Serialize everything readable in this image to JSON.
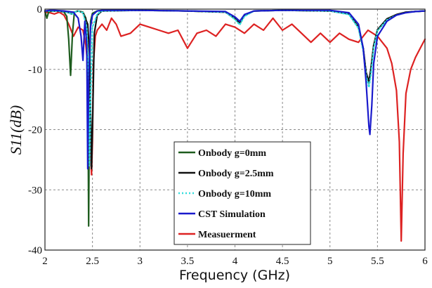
{
  "chart_data": {
    "type": "line",
    "xlabel": "Frequency (GHz)",
    "ylabel": "S11(dB)",
    "xlim": [
      2,
      6
    ],
    "ylim": [
      -40,
      0
    ],
    "x_ticks": [
      "2",
      "2.5",
      "3",
      "3.5",
      "4",
      "4.5",
      "5",
      "5.5",
      "6"
    ],
    "y_ticks": [
      "0",
      "-10",
      "-20",
      "-30",
      "-40"
    ],
    "grid": true,
    "legend_position": "bottom-center",
    "series": [
      {
        "name": "Onbody g=0mm",
        "color": "#1e5c1e",
        "dash": "solid",
        "x": [
          2.0,
          2.02,
          2.04,
          2.1,
          2.15,
          2.2,
          2.23,
          2.25,
          2.27,
          2.29,
          2.31,
          2.35,
          2.4,
          2.43,
          2.45,
          2.46,
          2.47,
          2.48,
          2.5,
          2.55,
          2.6,
          3.0,
          3.5,
          3.9,
          4.0,
          4.05,
          4.1,
          4.2,
          4.5,
          5.0,
          5.2,
          5.3,
          5.35,
          5.38,
          5.41,
          5.43,
          5.46,
          5.5,
          5.6,
          5.7,
          5.8,
          5.9,
          6.0
        ],
        "y": [
          -0.3,
          -1.5,
          -0.4,
          -0.3,
          -0.3,
          -0.5,
          -1.2,
          -5.0,
          -11.0,
          -4.0,
          -0.5,
          -0.3,
          -0.5,
          -1.5,
          -9.0,
          -36.0,
          -10.0,
          -2.0,
          -0.7,
          -0.3,
          -0.2,
          -0.2,
          -0.3,
          -0.5,
          -1.6,
          -2.4,
          -1.0,
          -0.3,
          -0.2,
          -0.3,
          -0.8,
          -3.0,
          -6.5,
          -10.5,
          -12.3,
          -10.0,
          -6.0,
          -3.5,
          -1.7,
          -0.9,
          -0.5,
          -0.4,
          -0.3
        ]
      },
      {
        "name": "Onbody g=2.5mm",
        "color": "#111111",
        "dash": "solid",
        "x": [
          2.0,
          2.1,
          2.2,
          2.25,
          2.28,
          2.31,
          2.35,
          2.4,
          2.45,
          2.47,
          2.49,
          2.5,
          2.52,
          2.55,
          2.6,
          3.0,
          3.5,
          3.9,
          4.0,
          4.05,
          4.1,
          4.2,
          4.5,
          5.0,
          5.2,
          5.3,
          5.35,
          5.38,
          5.41,
          5.43,
          5.46,
          5.5,
          5.6,
          5.7,
          5.8,
          5.9,
          6.0
        ],
        "y": [
          -0.3,
          -0.3,
          -0.4,
          -0.6,
          -0.8,
          -0.5,
          -0.3,
          -0.6,
          -2.5,
          -8.0,
          -26.5,
          -20.0,
          -4.0,
          -1.0,
          -0.3,
          -0.2,
          -0.3,
          -0.5,
          -1.5,
          -2.3,
          -1.0,
          -0.3,
          -0.2,
          -0.3,
          -0.8,
          -3.0,
          -6.5,
          -10.5,
          -12.0,
          -10.0,
          -6.0,
          -3.4,
          -1.6,
          -0.9,
          -0.5,
          -0.4,
          -0.3
        ]
      },
      {
        "name": "Onbody g=10mm",
        "color": "#33dddd",
        "dash": "dotted",
        "x": [
          2.0,
          2.1,
          2.2,
          2.25,
          2.28,
          2.31,
          2.35,
          2.4,
          2.44,
          2.46,
          2.47,
          2.48,
          2.5,
          2.55,
          2.6,
          3.0,
          3.5,
          3.9,
          4.0,
          4.05,
          4.1,
          4.2,
          4.5,
          5.0,
          5.2,
          5.3,
          5.35,
          5.38,
          5.41,
          5.43,
          5.46,
          5.5,
          5.6,
          5.7,
          5.8,
          5.9,
          6.0
        ],
        "y": [
          -0.3,
          -0.3,
          -0.4,
          -0.6,
          -0.9,
          -0.5,
          -0.3,
          -0.6,
          -3.0,
          -12.0,
          -26.0,
          -15.0,
          -3.0,
          -0.8,
          -0.3,
          -0.2,
          -0.3,
          -0.5,
          -1.7,
          -2.6,
          -1.2,
          -0.3,
          -0.2,
          -0.3,
          -0.9,
          -3.2,
          -7.0,
          -11.0,
          -13.0,
          -11.0,
          -6.5,
          -3.6,
          -1.8,
          -1.0,
          -0.6,
          -0.4,
          -0.3
        ]
      },
      {
        "name": "CST Simulation",
        "color": "#1a1acc",
        "dash": "solid",
        "x": [
          2.0,
          2.05,
          2.1,
          2.2,
          2.3,
          2.35,
          2.38,
          2.4,
          2.42,
          2.44,
          2.45,
          2.46,
          2.48,
          2.5,
          2.55,
          2.6,
          3.0,
          3.5,
          3.9,
          4.0,
          4.05,
          4.1,
          4.2,
          4.5,
          5.0,
          5.2,
          5.3,
          5.35,
          5.38,
          5.41,
          5.42,
          5.44,
          5.46,
          5.5,
          5.6,
          5.7,
          5.8,
          5.9,
          6.0
        ],
        "y": [
          -0.3,
          -0.2,
          -0.2,
          -0.3,
          -0.5,
          -1.5,
          -4.5,
          -8.5,
          -2.0,
          -6.0,
          -26.5,
          -12.0,
          -3.0,
          -1.0,
          -0.3,
          -0.2,
          -0.2,
          -0.3,
          -0.4,
          -1.3,
          -2.0,
          -0.9,
          -0.3,
          -0.2,
          -0.2,
          -0.6,
          -2.5,
          -6.5,
          -12.0,
          -19.5,
          -20.8,
          -16.0,
          -9.0,
          -4.5,
          -2.0,
          -1.0,
          -0.6,
          -0.4,
          -0.3
        ]
      },
      {
        "name": "Measuerment",
        "color": "#dd2222",
        "dash": "solid",
        "x": [
          2.0,
          2.05,
          2.1,
          2.15,
          2.2,
          2.25,
          2.3,
          2.35,
          2.4,
          2.43,
          2.46,
          2.48,
          2.49,
          2.5,
          2.51,
          2.53,
          2.55,
          2.6,
          2.65,
          2.7,
          2.75,
          2.8,
          2.9,
          3.0,
          3.1,
          3.2,
          3.3,
          3.4,
          3.5,
          3.6,
          3.7,
          3.8,
          3.9,
          4.0,
          4.1,
          4.2,
          4.3,
          4.4,
          4.5,
          4.6,
          4.7,
          4.8,
          4.9,
          5.0,
          5.1,
          5.2,
          5.3,
          5.4,
          5.5,
          5.6,
          5.65,
          5.7,
          5.73,
          5.75,
          5.77,
          5.8,
          5.85,
          5.9,
          5.95,
          6.0
        ],
        "y": [
          -0.5,
          -0.6,
          -0.8,
          -0.5,
          -1.0,
          -2.5,
          -4.5,
          -3.0,
          -3.5,
          -6.0,
          -11.0,
          -24.0,
          -27.5,
          -22.0,
          -9.0,
          -4.5,
          -3.5,
          -2.5,
          -3.5,
          -1.5,
          -2.5,
          -4.5,
          -4.0,
          -2.5,
          -3.0,
          -3.5,
          -4.0,
          -3.5,
          -6.5,
          -4.0,
          -3.5,
          -4.5,
          -2.5,
          -3.0,
          -4.0,
          -2.5,
          -3.5,
          -1.5,
          -3.5,
          -2.5,
          -4.0,
          -5.5,
          -4.0,
          -5.5,
          -4.0,
          -5.0,
          -5.5,
          -3.5,
          -4.5,
          -6.5,
          -9.0,
          -13.5,
          -22.0,
          -38.5,
          -24.0,
          -14.0,
          -10.0,
          -8.0,
          -6.5,
          -5.0
        ]
      }
    ]
  }
}
